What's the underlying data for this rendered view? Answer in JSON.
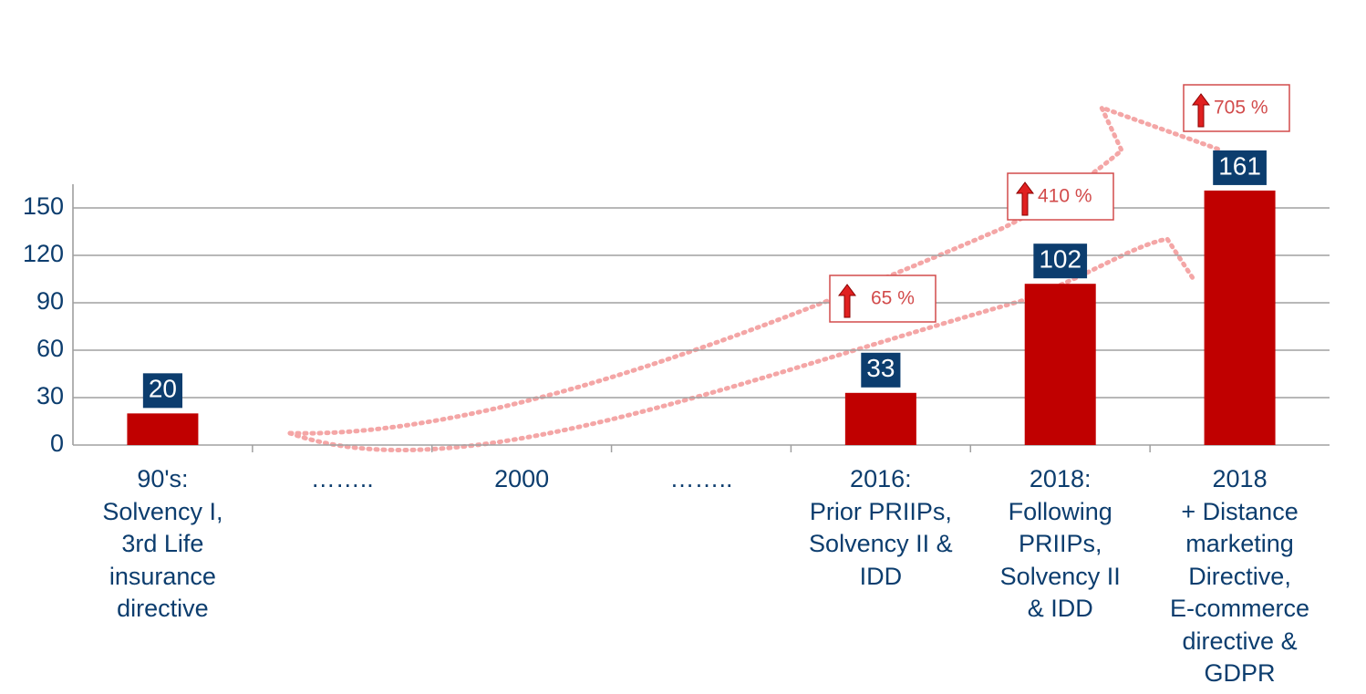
{
  "chart_data": {
    "type": "bar",
    "categories": [
      "90's:\nSolvency I,\n3rd Life\ninsurance\ndirective",
      "……..",
      "2000",
      "……..",
      "2016:\nPrior PRIIPs,\nSolvency II &\nIDD",
      "2018:\nFollowing\nPRIIPs,\nSolvency II\n& IDD",
      "2018\n+ Distance\nmarketing\nDirective,\nE-commerce\ndirective &\nGDPR"
    ],
    "values": [
      20,
      null,
      null,
      null,
      33,
      102,
      161
    ],
    "color": "#c00000",
    "ylim": [
      0,
      165
    ],
    "yticks": [
      0,
      30,
      60,
      90,
      120,
      150
    ],
    "grid": true,
    "annotations": [
      "65 %",
      "410 %",
      "705 %"
    ]
  }
}
